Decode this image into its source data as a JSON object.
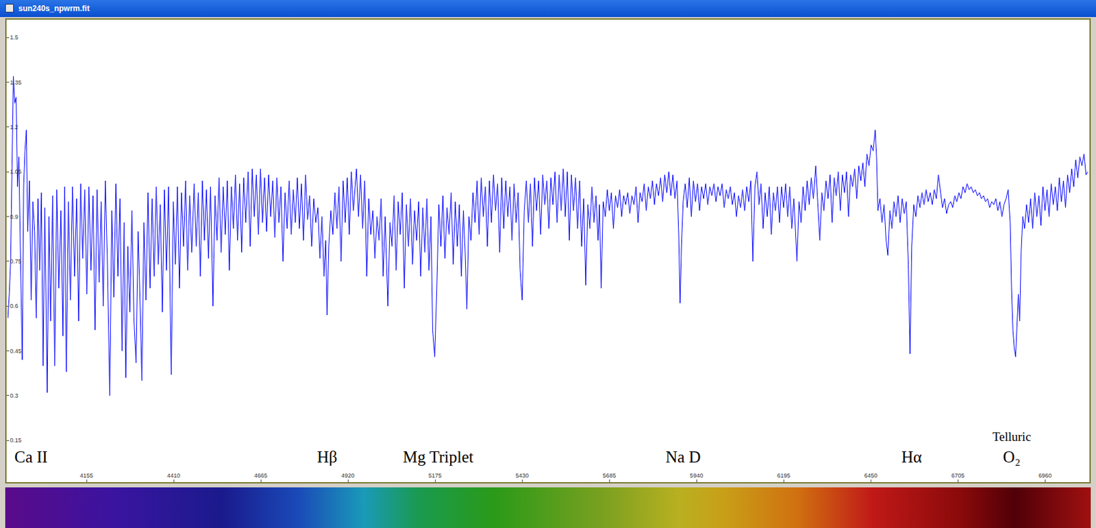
{
  "window_title": "sun240s_npwrm.fit",
  "chart_data": {
    "type": "line",
    "color": "#0000ff",
    "grid": false,
    "xlim": [
      3921,
      7090
    ],
    "ylim": [
      0.01,
      1.56
    ],
    "xticks": [
      4155,
      4410,
      4665,
      4920,
      5175,
      5430,
      5685,
      5940,
      6195,
      6450,
      6705,
      6960
    ],
    "yticks": [
      0.15,
      0.3,
      0.45,
      0.6,
      0.75,
      0.9,
      1.05,
      1.2,
      1.35,
      1.5
    ],
    "annotations": [
      {
        "text": "Ca II",
        "x": 3993
      },
      {
        "text": "Hβ",
        "x": 4859
      },
      {
        "text": "Mg Triplet",
        "x": 5184
      },
      {
        "text": "Na D",
        "x": 5900
      },
      {
        "text": "Hα",
        "x": 6569
      },
      {
        "text": "Telluric O₂",
        "x": 6862
      }
    ],
    "x": [
      3925,
      3929,
      3933,
      3937,
      3941,
      3945,
      3949,
      3953,
      3957,
      3962,
      3967,
      3971,
      3975,
      3979,
      3983,
      3988,
      3993,
      3998,
      4003,
      4008,
      4013,
      4018,
      4023,
      4028,
      4033,
      4040,
      4045,
      4050,
      4056,
      4062,
      4068,
      4074,
      4080,
      4086,
      4091,
      4096,
      4102,
      4108,
      4114,
      4120,
      4126,
      4132,
      4138,
      4144,
      4150,
      4156,
      4162,
      4168,
      4174,
      4180,
      4186,
      4192,
      4198,
      4204,
      4210,
      4216,
      4223,
      4229,
      4235,
      4241,
      4247,
      4253,
      4259,
      4265,
      4270,
      4276,
      4282,
      4288,
      4294,
      4300,
      4306,
      4312,
      4317,
      4323,
      4329,
      4335,
      4341,
      4347,
      4353,
      4359,
      4365,
      4371,
      4377,
      4383,
      4389,
      4395,
      4403,
      4409,
      4415,
      4421,
      4427,
      4433,
      4439,
      4445,
      4451,
      4457,
      4463,
      4470,
      4476,
      4482,
      4488,
      4494,
      4500,
      4506,
      4512,
      4518,
      4525,
      4531,
      4537,
      4543,
      4549,
      4555,
      4561,
      4567,
      4573,
      4579,
      4585,
      4591,
      4597,
      4603,
      4609,
      4615,
      4621,
      4628,
      4634,
      4640,
      4646,
      4652,
      4658,
      4664,
      4670,
      4676,
      4682,
      4688,
      4694,
      4700,
      4706,
      4712,
      4718,
      4724,
      4730,
      4736,
      4742,
      4748,
      4754,
      4760,
      4766,
      4772,
      4778,
      4784,
      4790,
      4796,
      4802,
      4808,
      4814,
      4820,
      4826,
      4832,
      4838,
      4844,
      4850,
      4855,
      4859,
      4864,
      4870,
      4876,
      4882,
      4888,
      4894,
      4900,
      4906,
      4912,
      4918,
      4924,
      4930,
      4936,
      4945,
      4951,
      4957,
      4963,
      4969,
      4975,
      4981,
      4987,
      4993,
      4999,
      5005,
      5011,
      5017,
      5023,
      5029,
      5037,
      5043,
      5049,
      5055,
      5061,
      5067,
      5073,
      5079,
      5085,
      5091,
      5097,
      5103,
      5109,
      5115,
      5121,
      5127,
      5133,
      5139,
      5145,
      5151,
      5157,
      5163,
      5168,
      5174,
      5180,
      5186,
      5192,
      5198,
      5204,
      5210,
      5216,
      5222,
      5228,
      5234,
      5240,
      5246,
      5252,
      5258,
      5263,
      5268,
      5274,
      5280,
      5286,
      5292,
      5298,
      5304,
      5310,
      5316,
      5322,
      5328,
      5334,
      5340,
      5346,
      5352,
      5358,
      5364,
      5370,
      5376,
      5382,
      5388,
      5394,
      5400,
      5406,
      5412,
      5418,
      5424,
      5430,
      5436,
      5442,
      5448,
      5454,
      5460,
      5466,
      5472,
      5478,
      5484,
      5490,
      5496,
      5502,
      5508,
      5514,
      5520,
      5526,
      5532,
      5538,
      5544,
      5550,
      5556,
      5562,
      5568,
      5574,
      5580,
      5586,
      5592,
      5598,
      5604,
      5610,
      5616,
      5622,
      5628,
      5634,
      5640,
      5646,
      5652,
      5656,
      5661,
      5667,
      5673,
      5679,
      5685,
      5691,
      5697,
      5703,
      5709,
      5715,
      5721,
      5727,
      5733,
      5739,
      5745,
      5751,
      5757,
      5763,
      5769,
      5775,
      5781,
      5787,
      5793,
      5799,
      5805,
      5811,
      5817,
      5823,
      5829,
      5835,
      5841,
      5847,
      5853,
      5859,
      5865,
      5871,
      5877,
      5883,
      5888,
      5892,
      5896,
      5901,
      5907,
      5913,
      5919,
      5925,
      5931,
      5937,
      5943,
      5949,
      5955,
      5961,
      5967,
      5973,
      5979,
      5985,
      5991,
      5997,
      6003,
      6009,
      6015,
      6021,
      6027,
      6033,
      6039,
      6045,
      6051,
      6057,
      6063,
      6069,
      6075,
      6081,
      6087,
      6093,
      6099,
      6105,
      6111,
      6117,
      6123,
      6129,
      6135,
      6141,
      6147,
      6153,
      6159,
      6165,
      6171,
      6177,
      6183,
      6189,
      6195,
      6201,
      6207,
      6213,
      6219,
      6225,
      6234,
      6240,
      6246,
      6252,
      6258,
      6264,
      6270,
      6276,
      6282,
      6289,
      6295,
      6301,
      6307,
      6313,
      6319,
      6325,
      6331,
      6337,
      6343,
      6349,
      6355,
      6361,
      6367,
      6373,
      6379,
      6385,
      6391,
      6397,
      6403,
      6409,
      6415,
      6421,
      6427,
      6433,
      6439,
      6445,
      6451,
      6457,
      6463,
      6467,
      6471,
      6477,
      6483,
      6489,
      6495,
      6500,
      6506,
      6512,
      6518,
      6524,
      6530,
      6536,
      6542,
      6548,
      6554,
      6560,
      6565,
      6570,
      6576,
      6582,
      6588,
      6594,
      6600,
      6606,
      6612,
      6618,
      6624,
      6630,
      6636,
      6642,
      6648,
      6654,
      6660,
      6666,
      6672,
      6678,
      6684,
      6690,
      6696,
      6702,
      6708,
      6714,
      6720,
      6726,
      6732,
      6738,
      6744,
      6750,
      6756,
      6762,
      6768,
      6774,
      6780,
      6786,
      6792,
      6798,
      6804,
      6810,
      6816,
      6822,
      6828,
      6834,
      6840,
      6846,
      6852,
      6858,
      6862,
      6866,
      6870,
      6874,
      6878,
      6882,
      6886,
      6890,
      6895,
      6900,
      6906,
      6912,
      6918,
      6924,
      6930,
      6936,
      6942,
      6948,
      6954,
      6960,
      6966,
      6972,
      6978,
      6984,
      6990,
      6996,
      7002,
      7008,
      7014,
      7020,
      7026,
      7032,
      7038,
      7044,
      7050,
      7056,
      7062,
      7068,
      7074,
      7080,
      7085
    ],
    "values": [
      0.56,
      0.64,
      0.75,
      1.05,
      1.37,
      1.28,
      1.3,
      1.0,
      1.1,
      0.75,
      0.42,
      1.0,
      1.12,
      1.19,
      0.85,
      1.02,
      0.62,
      0.95,
      0.85,
      0.56,
      0.96,
      0.72,
      0.98,
      0.4,
      0.93,
      0.31,
      0.9,
      0.55,
      0.97,
      0.4,
      0.99,
      0.66,
      0.92,
      0.5,
      1.0,
      0.38,
      0.95,
      0.62,
      1.0,
      0.7,
      0.96,
      0.55,
      1.01,
      0.76,
      0.99,
      0.64,
      1.0,
      0.72,
      0.97,
      0.52,
      0.99,
      0.68,
      0.95,
      0.6,
      1.02,
      0.75,
      0.3,
      0.92,
      0.63,
      1.01,
      0.7,
      0.96,
      0.45,
      0.88,
      0.36,
      0.8,
      0.58,
      0.92,
      0.55,
      0.41,
      0.85,
      0.6,
      0.35,
      0.88,
      0.62,
      0.98,
      0.66,
      0.96,
      0.7,
      1.0,
      0.74,
      0.94,
      0.58,
      0.99,
      0.72,
      1.0,
      0.37,
      0.95,
      0.74,
      1.0,
      0.66,
      0.98,
      0.8,
      1.02,
      0.72,
      0.97,
      0.78,
      1.01,
      0.8,
      0.98,
      0.7,
      1.02,
      0.82,
      0.99,
      0.76,
      1.0,
      0.6,
      0.97,
      0.82,
      1.03,
      0.78,
      1.0,
      0.84,
      1.02,
      0.72,
      1.0,
      0.86,
      1.04,
      0.82,
      1.01,
      0.78,
      1.03,
      0.88,
      1.05,
      0.8,
      1.06,
      0.9,
      1.04,
      0.84,
      1.06,
      0.88,
      1.03,
      0.85,
      1.04,
      0.9,
      1.02,
      0.83,
      1.03,
      0.88,
      1.0,
      0.75,
      0.98,
      0.86,
      1.02,
      0.84,
      0.99,
      0.88,
      1.03,
      0.86,
      1.01,
      0.82,
      1.04,
      0.89,
      0.97,
      0.8,
      0.96,
      0.88,
      0.93,
      0.76,
      0.9,
      0.7,
      0.82,
      0.57,
      0.8,
      0.92,
      0.84,
      0.98,
      0.86,
      1.0,
      0.75,
      1.02,
      0.88,
      1.03,
      0.84,
      1.05,
      0.92,
      1.06,
      0.9,
      1.04,
      0.86,
      1.02,
      0.7,
      0.96,
      0.84,
      0.92,
      0.76,
      0.9,
      0.82,
      0.96,
      0.7,
      0.9,
      0.6,
      0.88,
      0.8,
      0.97,
      0.72,
      0.95,
      0.84,
      0.98,
      0.66,
      0.94,
      0.8,
      0.96,
      0.74,
      0.92,
      0.82,
      0.95,
      0.7,
      0.93,
      0.78,
      0.96,
      0.72,
      0.9,
      0.52,
      0.43,
      0.66,
      0.94,
      0.8,
      0.97,
      0.76,
      0.93,
      0.84,
      0.98,
      0.74,
      0.95,
      0.8,
      0.94,
      0.7,
      0.92,
      0.78,
      0.59,
      0.9,
      0.82,
      0.98,
      0.88,
      1.02,
      0.84,
      1.03,
      0.9,
      1.0,
      0.8,
      1.02,
      0.88,
      1.04,
      0.92,
      1.01,
      0.78,
      1.03,
      0.86,
      1.02,
      0.9,
      1.0,
      0.82,
      1.01,
      0.88,
      0.98,
      0.72,
      0.62,
      0.92,
      1.02,
      0.88,
      1.01,
      0.8,
      1.03,
      0.92,
      1.02,
      0.84,
      1.04,
      0.94,
      1.02,
      0.86,
      1.03,
      0.94,
      1.05,
      0.88,
      1.04,
      0.92,
      1.06,
      0.9,
      1.05,
      0.82,
      1.04,
      0.92,
      1.03,
      0.86,
      1.02,
      0.8,
      0.96,
      0.67,
      0.94,
      0.86,
      1.0,
      0.88,
      0.97,
      0.82,
      0.94,
      0.66,
      0.95,
      0.9,
      0.99,
      0.92,
      0.98,
      0.86,
      0.97,
      0.93,
      0.99,
      0.9,
      0.97,
      0.94,
      0.98,
      0.91,
      0.97,
      0.94,
      1.0,
      0.88,
      0.98,
      0.95,
      1.01,
      0.92,
      1.0,
      0.96,
      1.02,
      0.94,
      1.01,
      0.97,
      1.03,
      0.95,
      1.04,
      0.98,
      1.05,
      0.97,
      1.04,
      0.96,
      1.02,
      0.84,
      0.61,
      0.8,
      0.95,
      1.01,
      0.93,
      1.03,
      0.9,
      1.02,
      0.95,
      1.01,
      0.92,
      1.0,
      0.96,
      1.01,
      0.94,
      1.0,
      0.97,
      1.01,
      0.95,
      1.0,
      0.97,
      1.01,
      0.93,
      0.99,
      0.96,
      1.0,
      0.94,
      0.98,
      0.9,
      0.97,
      0.93,
      0.99,
      0.92,
      1.0,
      0.95,
      1.02,
      0.75,
      1.0,
      1.05,
      0.94,
      1.01,
      0.86,
      0.98,
      0.9,
      1.0,
      0.84,
      0.98,
      0.92,
      1.0,
      0.88,
      1.0,
      0.93,
      1.01,
      0.9,
      1.0,
      0.86,
      0.96,
      0.75,
      0.95,
      0.88,
      1.0,
      0.92,
      1.02,
      0.94,
      1.03,
      0.96,
      1.07,
      0.95,
      0.82,
      0.98,
      0.92,
      1.02,
      0.96,
      1.04,
      0.88,
      1.03,
      0.97,
      1.05,
      0.92,
      1.04,
      0.98,
      1.05,
      0.9,
      1.04,
      1.0,
      1.06,
      0.96,
      1.07,
      1.02,
      1.08,
      1.0,
      1.11,
      1.07,
      1.14,
      1.12,
      1.19,
      1.1,
      0.92,
      0.96,
      0.88,
      0.94,
      0.82,
      0.77,
      0.92,
      0.86,
      0.95,
      0.9,
      0.97,
      0.88,
      0.96,
      0.91,
      0.95,
      0.74,
      0.44,
      0.8,
      0.94,
      0.9,
      0.97,
      0.93,
      0.98,
      0.94,
      0.99,
      0.95,
      0.98,
      0.94,
      0.99,
      0.96,
      1.04,
      0.98,
      0.93,
      0.96,
      0.91,
      0.94,
      0.95,
      0.93,
      0.97,
      0.95,
      0.98,
      0.96,
      1.0,
      0.98,
      1.01,
      0.99,
      1.0,
      0.98,
      0.99,
      0.97,
      0.98,
      0.96,
      0.97,
      0.95,
      0.96,
      0.93,
      0.95,
      0.94,
      0.96,
      0.92,
      0.95,
      0.9,
      0.94,
      0.96,
      0.99,
      0.88,
      0.66,
      0.52,
      0.46,
      0.43,
      0.52,
      0.64,
      0.55,
      0.78,
      0.9,
      0.86,
      0.94,
      0.88,
      0.96,
      0.86,
      0.98,
      0.9,
      0.97,
      0.87,
      1.0,
      0.92,
      0.99,
      0.9,
      1.01,
      0.94,
      1.0,
      0.92,
      1.03,
      0.95,
      1.02,
      0.93,
      1.04,
      0.98,
      1.06,
      1.0,
      1.09,
      1.03,
      1.1,
      1.07,
      1.11,
      1.04,
      1.05
    ]
  }
}
